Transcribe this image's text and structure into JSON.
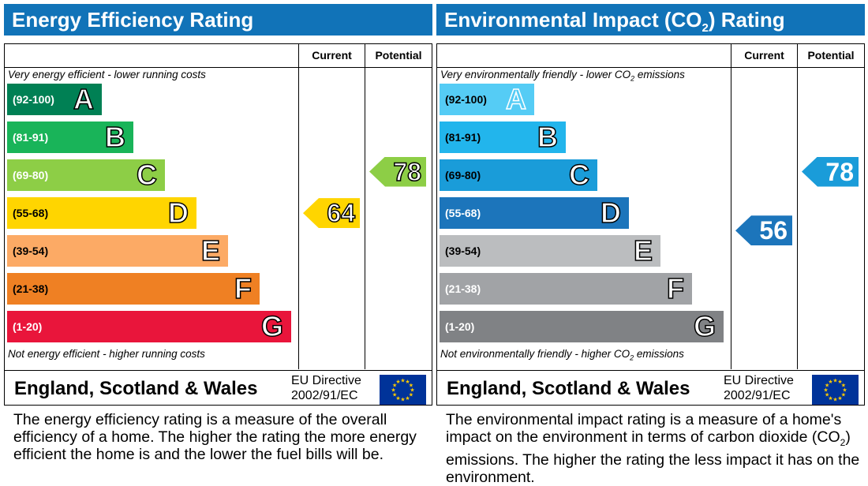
{
  "energy": {
    "title": "Energy Efficiency Rating",
    "col_current": "Current",
    "col_potential": "Potential",
    "top_note": "Very energy efficient - lower running costs",
    "bottom_note": "Not energy efficient - higher running costs",
    "footer": "England, Scotland & Wales",
    "directive_line1": "EU Directive",
    "directive_line2": "2002/91/EC",
    "bands": [
      {
        "range": "(92-100)",
        "letter": "A",
        "color": "#008054"
      },
      {
        "range": "(81-91)",
        "letter": "B",
        "color": "#19b459"
      },
      {
        "range": "(69-80)",
        "letter": "C",
        "color": "#8dce46"
      },
      {
        "range": "(55-68)",
        "letter": "D",
        "color": "#ffd500"
      },
      {
        "range": "(39-54)",
        "letter": "E",
        "color": "#fcaa65"
      },
      {
        "range": "(21-38)",
        "letter": "F",
        "color": "#ef8023"
      },
      {
        "range": "(1-20)",
        "letter": "G",
        "color": "#e9153b"
      }
    ],
    "current": {
      "value": "64",
      "color": "#ffd500"
    },
    "potential": {
      "value": "78",
      "color": "#8dce46"
    },
    "description": "The energy efficiency rating is a measure of the overall efficiency of a home. The higher the rating the more energy efficient the home is and the lower the fuel bills will be."
  },
  "environmental": {
    "title_a": "Environmental Impact (CO",
    "title_sub": "2",
    "title_b": ") Rating",
    "col_current": "Current",
    "col_potential": "Potential",
    "top_note_a": "Very environmentally friendly - lower CO",
    "top_note_sub": "2",
    "top_note_b": " emissions",
    "bottom_note_a": "Not environmentally friendly - higher CO",
    "bottom_note_sub": "2",
    "bottom_note_b": " emissions",
    "footer": "England, Scotland & Wales",
    "directive_line1": "EU Directive",
    "directive_line2": "2002/91/EC",
    "bands": [
      {
        "range": "(92-100)",
        "letter": "A",
        "color": "#55ccf5"
      },
      {
        "range": "(81-91)",
        "letter": "B",
        "color": "#22b5ec"
      },
      {
        "range": "(69-80)",
        "letter": "C",
        "color": "#1a9cd9"
      },
      {
        "range": "(55-68)",
        "letter": "D",
        "color": "#1c75bb"
      },
      {
        "range": "(39-54)",
        "letter": "E",
        "color": "#bbbdbf"
      },
      {
        "range": "(21-38)",
        "letter": "F",
        "color": "#a1a3a6"
      },
      {
        "range": "(1-20)",
        "letter": "G",
        "color": "#808285"
      }
    ],
    "current": {
      "value": "56",
      "color": "#1c75bb"
    },
    "potential": {
      "value": "78",
      "color": "#1a9cd9"
    },
    "description_a": "The environmental impact rating is a measure of a home's impact on the environment in terms of carbon dioxide (CO",
    "description_sub": "2",
    "description_b": ") emissions. The higher the rating the less impact it has on the environment."
  },
  "chart_data": [
    {
      "type": "bar",
      "title": "Energy Efficiency Rating",
      "categories": [
        "A",
        "B",
        "C",
        "D",
        "E",
        "F",
        "G"
      ],
      "ranges": [
        "(92-100)",
        "(81-91)",
        "(69-80)",
        "(55-68)",
        "(39-54)",
        "(21-38)",
        "(1-20)"
      ],
      "current": 64,
      "potential": 78
    },
    {
      "type": "bar",
      "title": "Environmental Impact (CO2) Rating",
      "categories": [
        "A",
        "B",
        "C",
        "D",
        "E",
        "F",
        "G"
      ],
      "ranges": [
        "(92-100)",
        "(81-91)",
        "(69-80)",
        "(55-68)",
        "(39-54)",
        "(21-38)",
        "(1-20)"
      ],
      "current": 56,
      "potential": 78
    }
  ]
}
